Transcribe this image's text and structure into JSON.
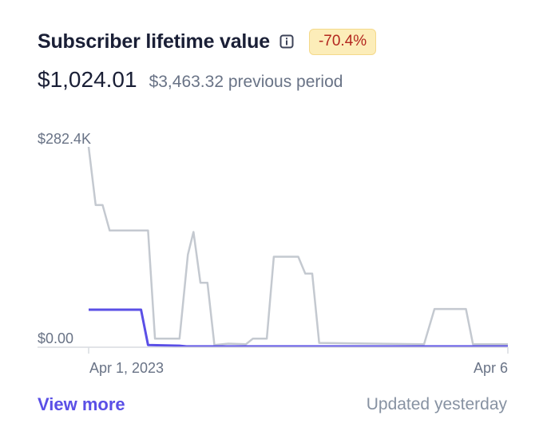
{
  "card": {
    "title": "Subscriber lifetime value",
    "info_icon": "info-icon",
    "change_badge": "-70.4%",
    "current_value": "$1,024.01",
    "previous_value": "$3,463.32 previous period",
    "view_more_label": "View more",
    "updated_label": "Updated yesterday"
  },
  "colors": {
    "current_series": "#5a4fe6",
    "previous_series": "#c4c9d0",
    "badge_bg": "#fcedb9",
    "badge_text": "#b3261e",
    "axis": "#d9dce1",
    "tick_text": "#697386"
  },
  "chart_data": {
    "type": "line",
    "x_ticks": [
      "Apr 1, 2023",
      "Apr 6"
    ],
    "y_ticks": [
      "$282.4K",
      "$0.00"
    ],
    "ylim": [
      0,
      282400
    ],
    "series": [
      {
        "role": "current period",
        "values": [
          [
            0,
            52000
          ],
          [
            0.75,
            52000
          ],
          [
            0.85,
            2000
          ],
          [
            1.3,
            1000
          ],
          [
            1.4,
            0
          ],
          [
            6,
            0
          ]
        ]
      },
      {
        "role": "previous period",
        "values": [
          [
            0,
            282400
          ],
          [
            0.1,
            200000
          ],
          [
            0.2,
            200000
          ],
          [
            0.3,
            164000
          ],
          [
            0.85,
            164000
          ],
          [
            0.95,
            11000
          ],
          [
            1.3,
            11000
          ],
          [
            1.42,
            130000
          ],
          [
            1.5,
            162000
          ],
          [
            1.6,
            90000
          ],
          [
            1.7,
            90000
          ],
          [
            1.8,
            2000
          ],
          [
            2.0,
            4000
          ],
          [
            2.25,
            3000
          ],
          [
            2.35,
            11000
          ],
          [
            2.55,
            11000
          ],
          [
            2.65,
            127000
          ],
          [
            3.0,
            127000
          ],
          [
            3.1,
            103000
          ],
          [
            3.2,
            103000
          ],
          [
            3.3,
            5000
          ],
          [
            4.8,
            3000
          ],
          [
            4.95,
            53000
          ],
          [
            5.4,
            53000
          ],
          [
            5.5,
            3000
          ],
          [
            6,
            3000
          ]
        ]
      }
    ]
  }
}
